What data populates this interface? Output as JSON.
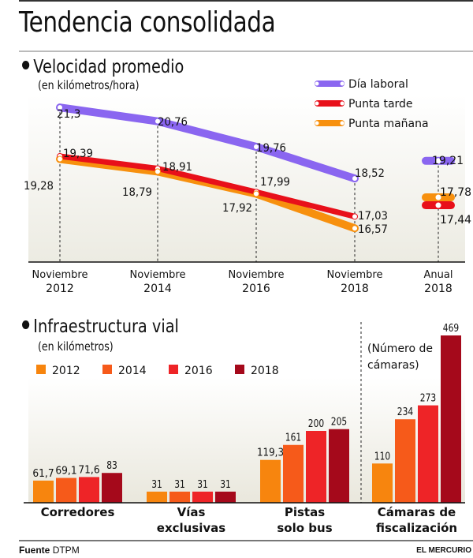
{
  "header": {
    "title": "Tendencia consolidada"
  },
  "footer": {
    "source_label": "Fuente",
    "source_value": "DTPM",
    "publisher": "EL MERCURIO"
  },
  "chart_data": [
    {
      "type": "line",
      "title": "Velocidad promedio",
      "subtitle": "(en kilómetros/hora)",
      "x": [
        "Noviembre 2012",
        "Noviembre 2014",
        "Noviembre 2016",
        "Noviembre 2018"
      ],
      "x_ticks": [
        [
          "Noviembre",
          "2012"
        ],
        [
          "Noviembre",
          "2014"
        ],
        [
          "Noviembre",
          "2016"
        ],
        [
          "Noviembre",
          "2018"
        ],
        [
          "Anual",
          "2018"
        ]
      ],
      "series": [
        {
          "name": "Día laboral",
          "color": "#8a66f0",
          "values": [
            21.3,
            20.76,
            19.76,
            18.52
          ],
          "labels": [
            "21,3",
            "20,76",
            "19,76",
            "18,52"
          ],
          "annual": 19.21,
          "annual_label": "19,21"
        },
        {
          "name": "Punta tarde",
          "color": "#e8101a",
          "values": [
            19.39,
            18.91,
            17.99,
            17.03
          ],
          "labels": [
            "19,39",
            "18,91",
            "17,99",
            "17,03"
          ],
          "annual": 17.44,
          "annual_label": "17,44"
        },
        {
          "name": "Punta mañana",
          "color": "#f7900e",
          "values": [
            19.28,
            18.79,
            17.92,
            16.57
          ],
          "labels": [
            "19,28",
            "18,79",
            "17,92",
            "16,57"
          ],
          "annual": 17.78,
          "annual_label": "17,78"
        }
      ],
      "annual_category": "Anual 2018",
      "ylim": [
        15.0,
        21.8
      ],
      "legend": "top-right",
      "grid": false
    },
    {
      "type": "bar",
      "title": "Infraestructura vial",
      "subtitle": "(en kilómetros)",
      "categories": [
        [
          "Corredores"
        ],
        [
          "Vías",
          "exclusivas"
        ],
        [
          "Pistas",
          "solo bus"
        ],
        [
          "Cámaras de",
          "fiscalización"
        ]
      ],
      "category_names": [
        "Corredores",
        "Vías exclusivas",
        "Pistas solo bus",
        "Cámaras de fiscalización"
      ],
      "series": [
        {
          "name": "2012",
          "color": "#f7850e",
          "values": [
            61.7,
            31,
            119.3,
            110
          ],
          "labels": [
            "61,7",
            "31",
            "119,3",
            "110"
          ]
        },
        {
          "name": "2014",
          "color": "#f65a1a",
          "values": [
            69.1,
            31,
            161,
            234
          ],
          "labels": [
            "69,1",
            "31",
            "161",
            "234"
          ]
        },
        {
          "name": "2016",
          "color": "#ee2427",
          "values": [
            71.6,
            31,
            200,
            273
          ],
          "labels": [
            "71,6",
            "31",
            "200",
            "273"
          ]
        },
        {
          "name": "2018",
          "color": "#a5091b",
          "values": [
            83,
            31,
            205,
            469
          ],
          "labels": [
            "83",
            "31",
            "205",
            "469"
          ]
        }
      ],
      "annotation": [
        "(Número de",
        "cámaras)"
      ],
      "legend": "top-left",
      "grid": false
    }
  ]
}
